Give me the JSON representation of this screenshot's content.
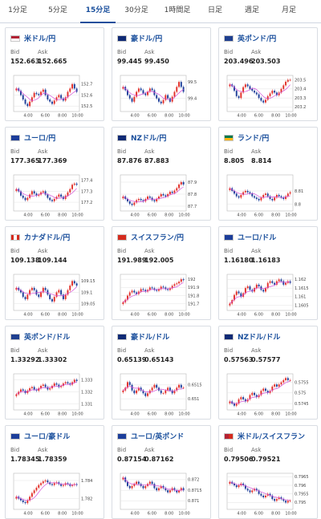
{
  "tabs": [
    {
      "label": "1分足",
      "active": false
    },
    {
      "label": "5分足",
      "active": false
    },
    {
      "label": "15分足",
      "active": true
    },
    {
      "label": "30分足",
      "active": false
    },
    {
      "label": "1時間足",
      "active": false
    },
    {
      "label": "日足",
      "active": false
    },
    {
      "label": "週足",
      "active": false
    },
    {
      "label": "月足",
      "active": false
    }
  ],
  "labels": {
    "bid": "Bid",
    "ask": "Ask"
  },
  "colors": {
    "up": "#e2312b",
    "down": "#1f3f9a",
    "ma": "#d34fd8",
    "axis": "#444444",
    "grid": "#e3e3e3"
  },
  "chart_data": [
    {
      "type": "candlestick",
      "pair": "米ドル/円",
      "flag": "us",
      "bid": "152.663",
      "ask": "152.665",
      "x_ticks": [
        "4:00",
        "6:00",
        "8:00",
        "10:00"
      ],
      "y_ticks": [
        "152.7",
        "152.6",
        "152.5"
      ],
      "ylim": [
        152.45,
        152.78
      ],
      "close": [
        152.66,
        152.64,
        152.6,
        152.56,
        152.52,
        152.5,
        152.54,
        152.58,
        152.62,
        152.61,
        152.6,
        152.63,
        152.65,
        152.6,
        152.56,
        152.54,
        152.52,
        152.55,
        152.58,
        152.6,
        152.57,
        152.55,
        152.58,
        152.63,
        152.66,
        152.7,
        152.66,
        152.63
      ]
    },
    {
      "type": "candlestick",
      "pair": "豪ドル/円",
      "flag": "au",
      "bid": "99.445",
      "ask": "99.450",
      "x_ticks": [
        "4:00",
        "6:00",
        "8:00",
        "10:00"
      ],
      "y_ticks": [
        "99.5",
        "99.4"
      ],
      "ylim": [
        99.32,
        99.54
      ],
      "close": [
        99.47,
        99.45,
        99.42,
        99.4,
        99.38,
        99.41,
        99.44,
        99.46,
        99.45,
        99.43,
        99.42,
        99.44,
        99.46,
        99.45,
        99.42,
        99.4,
        99.38,
        99.37,
        99.39,
        99.42,
        99.4,
        99.38,
        99.41,
        99.44,
        99.47,
        99.5,
        99.47,
        99.44
      ]
    },
    {
      "type": "candlestick",
      "pair": "英ポンド/円",
      "flag": "gb",
      "bid": "203.496",
      "ask": "203.503",
      "x_ticks": [
        "4:00",
        "6:00",
        "8:00",
        "10:00"
      ],
      "y_ticks": [
        "203.5",
        "203.4",
        "203.3",
        "203.2"
      ],
      "ylim": [
        203.15,
        203.55
      ],
      "close": [
        203.45,
        203.43,
        203.38,
        203.32,
        203.3,
        203.36,
        203.42,
        203.45,
        203.43,
        203.4,
        203.38,
        203.36,
        203.34,
        203.3,
        203.27,
        203.25,
        203.28,
        203.32,
        203.35,
        203.38,
        203.36,
        203.33,
        203.36,
        203.4,
        203.44,
        203.48,
        203.5,
        203.5
      ]
    },
    {
      "type": "candlestick",
      "pair": "ユーロ/円",
      "flag": "eu",
      "bid": "177.365",
      "ask": "177.369",
      "x_ticks": [
        "4:00",
        "6:00",
        "8:00",
        "10:00"
      ],
      "y_ticks": [
        "177.4",
        "177.3",
        "177.2"
      ],
      "ylim": [
        177.12,
        177.45
      ],
      "close": [
        177.32,
        177.3,
        177.26,
        177.24,
        177.22,
        177.24,
        177.27,
        177.3,
        177.28,
        177.26,
        177.27,
        177.29,
        177.3,
        177.27,
        177.24,
        177.22,
        177.21,
        177.23,
        177.25,
        177.27,
        177.25,
        177.23,
        177.26,
        177.29,
        177.32,
        177.36,
        177.37,
        177.36
      ]
    },
    {
      "type": "candlestick",
      "pair": "NZドル/円",
      "flag": "nz",
      "bid": "87.876",
      "ask": "87.883",
      "x_ticks": [
        "4:00",
        "6:00",
        "8:00",
        "10:00"
      ],
      "y_ticks": [
        "87.9",
        "87.8",
        "87.7"
      ],
      "ylim": [
        87.66,
        87.96
      ],
      "close": [
        87.78,
        87.76,
        87.74,
        87.72,
        87.71,
        87.73,
        87.75,
        87.76,
        87.75,
        87.74,
        87.76,
        87.78,
        87.77,
        87.75,
        87.74,
        87.76,
        87.78,
        87.8,
        87.79,
        87.78,
        87.8,
        87.82,
        87.81,
        87.83,
        87.85,
        87.88,
        87.9,
        87.88
      ]
    },
    {
      "type": "candlestick",
      "pair": "ランド/円",
      "flag": "za",
      "bid": "8.805",
      "ask": "8.814",
      "x_ticks": [
        "4:00",
        "6:00",
        "8:00",
        "10:00"
      ],
      "y_ticks": [
        "8.81",
        "8.8"
      ],
      "ylim": [
        8.795,
        8.822
      ],
      "close": [
        8.812,
        8.81,
        8.808,
        8.806,
        8.805,
        8.807,
        8.809,
        8.81,
        8.809,
        8.808,
        8.806,
        8.805,
        8.804,
        8.803,
        8.805,
        8.807,
        8.808,
        8.806,
        8.804,
        8.803,
        8.805,
        8.807,
        8.806,
        8.805,
        8.804,
        8.806,
        8.808,
        8.809
      ]
    },
    {
      "type": "candlestick",
      "pair": "カナダドル/円",
      "flag": "ca",
      "bid": "109.138",
      "ask": "109.144",
      "x_ticks": [
        "4:00",
        "6:00",
        "8:00",
        "10:00"
      ],
      "y_ticks": [
        "109.15",
        "109.1",
        "109.05"
      ],
      "ylim": [
        109.02,
        109.18
      ],
      "close": [
        109.12,
        109.11,
        109.1,
        109.08,
        109.07,
        109.09,
        109.11,
        109.12,
        109.11,
        109.09,
        109.08,
        109.1,
        109.12,
        109.11,
        109.09,
        109.07,
        109.06,
        109.08,
        109.1,
        109.11,
        109.09,
        109.07,
        109.09,
        109.11,
        109.13,
        109.15,
        109.14,
        109.13
      ]
    },
    {
      "type": "candlestick",
      "pair": "スイスフラン/円",
      "flag": "ch",
      "bid": "191.989",
      "ask": "192.005",
      "x_ticks": [
        "4:00",
        "6:00",
        "8:00",
        "10:00"
      ],
      "y_ticks": [
        "192",
        "191.9",
        "191.8",
        "191.7"
      ],
      "ylim": [
        191.62,
        192.06
      ],
      "close": [
        191.72,
        191.75,
        191.8,
        191.84,
        191.86,
        191.84,
        191.82,
        191.85,
        191.88,
        191.87,
        191.85,
        191.87,
        191.9,
        191.89,
        191.87,
        191.86,
        191.88,
        191.91,
        191.9,
        191.88,
        191.87,
        191.89,
        191.92,
        191.94,
        191.95,
        191.97,
        192.0,
        191.99
      ]
    },
    {
      "type": "candlestick",
      "pair": "ユーロ/ドル",
      "flag": "eu",
      "bid": "1.16180",
      "ask": "1.16183",
      "x_ticks": [
        "4:00",
        "6:00",
        "8:00",
        "10:00"
      ],
      "y_ticks": [
        "1.162",
        "1.1615",
        "1.161",
        "1.1605"
      ],
      "ylim": [
        1.1602,
        1.1623
      ],
      "close": [
        1.1606,
        1.1608,
        1.1611,
        1.1613,
        1.1612,
        1.161,
        1.1612,
        1.1615,
        1.1616,
        1.1614,
        1.1613,
        1.1615,
        1.1617,
        1.1616,
        1.1614,
        1.1613,
        1.1615,
        1.1618,
        1.1619,
        1.1618,
        1.1617,
        1.1619,
        1.162,
        1.1619,
        1.1617,
        1.1618,
        1.1619,
        1.1618
      ]
    },
    {
      "type": "candlestick",
      "pair": "英ポンド/ドル",
      "flag": "gb",
      "bid": "1.33292",
      "ask": "1.33302",
      "x_ticks": [
        "4:00",
        "6:00",
        "8:00",
        "10:00"
      ],
      "y_ticks": [
        "1.333",
        "1.332",
        "1.331"
      ],
      "ylim": [
        1.3305,
        1.3335
      ],
      "close": [
        1.3318,
        1.332,
        1.3322,
        1.3321,
        1.3319,
        1.3321,
        1.3323,
        1.3324,
        1.3322,
        1.3321,
        1.3323,
        1.3325,
        1.3326,
        1.3324,
        1.3322,
        1.3323,
        1.3325,
        1.3327,
        1.3326,
        1.3324,
        1.3325,
        1.3327,
        1.3328,
        1.3327,
        1.3326,
        1.3328,
        1.333,
        1.3329
      ]
    },
    {
      "type": "candlestick",
      "pair": "豪ドル/ドル",
      "flag": "au",
      "bid": "0.65139",
      "ask": "0.65143",
      "x_ticks": [
        "4:00",
        "6:00",
        "8:00",
        "10:00"
      ],
      "y_ticks": [
        "0.6515",
        "0.651"
      ],
      "ylim": [
        0.6506,
        0.6519
      ],
      "close": [
        0.6513,
        0.6514,
        0.6516,
        0.6515,
        0.6513,
        0.6512,
        0.6513,
        0.6514,
        0.6513,
        0.6512,
        0.6511,
        0.6512,
        0.6513,
        0.6514,
        0.6515,
        0.6514,
        0.6513,
        0.6512,
        0.6512,
        0.6513,
        0.6514,
        0.6513,
        0.6512,
        0.6513,
        0.6514,
        0.6515,
        0.6514,
        0.6514
      ]
    },
    {
      "type": "candlestick",
      "pair": "NZドル/ドル",
      "flag": "nz",
      "bid": "0.57563",
      "ask": "0.57577",
      "x_ticks": [
        "4:00",
        "6:00",
        "8:00",
        "10:00"
      ],
      "y_ticks": [
        "0.5755",
        "0.575",
        "0.5745"
      ],
      "ylim": [
        0.5742,
        0.5759
      ],
      "close": [
        0.5746,
        0.5745,
        0.5744,
        0.5745,
        0.5747,
        0.5748,
        0.5747,
        0.5746,
        0.5747,
        0.5749,
        0.575,
        0.5749,
        0.5748,
        0.5749,
        0.5751,
        0.5752,
        0.5751,
        0.575,
        0.5751,
        0.5753,
        0.5754,
        0.5753,
        0.5754,
        0.5755,
        0.5756,
        0.5757,
        0.5756,
        0.5756
      ]
    },
    {
      "type": "candlestick",
      "pair": "ユーロ/豪ドル",
      "flag": "eu",
      "bid": "1.78345",
      "ask": "1.78359",
      "x_ticks": [
        "4:00",
        "6:00",
        "8:00",
        "10:00"
      ],
      "y_ticks": [
        "1.784",
        "1.782"
      ],
      "ylim": [
        1.7808,
        1.7848
      ],
      "close": [
        1.7822,
        1.782,
        1.7818,
        1.7816,
        1.7815,
        1.7818,
        1.7822,
        1.7826,
        1.7829,
        1.7832,
        1.7835,
        1.7837,
        1.7839,
        1.784,
        1.7838,
        1.7836,
        1.7835,
        1.7837,
        1.7838,
        1.7836,
        1.7834,
        1.7835,
        1.7837,
        1.7836,
        1.7834,
        1.7835,
        1.7836,
        1.7835
      ]
    },
    {
      "type": "candlestick",
      "pair": "ユーロ/英ポンド",
      "flag": "eu",
      "bid": "0.87154",
      "ask": "0.87162",
      "x_ticks": [
        "4:00",
        "6:00",
        "8:00",
        "10:00"
      ],
      "y_ticks": [
        "0.872",
        "0.8715",
        "0.871"
      ],
      "ylim": [
        0.8706,
        0.8723
      ],
      "close": [
        0.8721,
        0.8719,
        0.8717,
        0.8716,
        0.8717,
        0.8718,
        0.8719,
        0.8718,
        0.8717,
        0.8716,
        0.8717,
        0.8718,
        0.8719,
        0.8718,
        0.8716,
        0.8715,
        0.8716,
        0.8717,
        0.8716,
        0.8715,
        0.8714,
        0.8715,
        0.8716,
        0.8715,
        0.8714,
        0.8715,
        0.8716,
        0.8715
      ]
    },
    {
      "type": "candlestick",
      "pair": "米ドル/スイスフラン",
      "flag": "us-ch",
      "bid": "0.79506",
      "ask": "0.79521",
      "x_ticks": [
        "4:00",
        "6:00",
        "8:00",
        "10:00"
      ],
      "y_ticks": [
        "0.7965",
        "0.796",
        "0.7955",
        "0.795"
      ],
      "ylim": [
        0.7946,
        0.7967
      ],
      "close": [
        0.7962,
        0.7961,
        0.796,
        0.7959,
        0.796,
        0.7961,
        0.796,
        0.7958,
        0.7957,
        0.7956,
        0.7957,
        0.7958,
        0.7957,
        0.7955,
        0.7954,
        0.7953,
        0.7954,
        0.7955,
        0.7954,
        0.7952,
        0.7951,
        0.7952,
        0.7953,
        0.7952,
        0.7951,
        0.795,
        0.7951,
        0.7951
      ]
    }
  ]
}
